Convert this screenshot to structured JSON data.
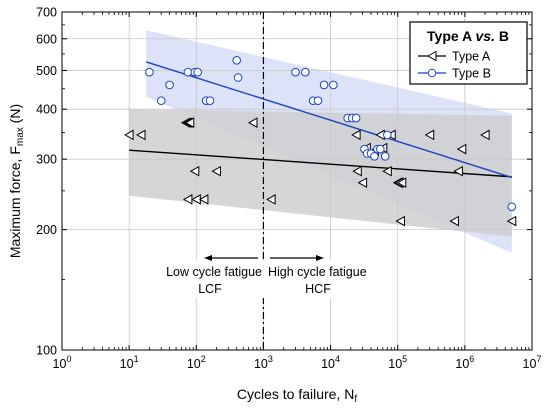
{
  "chart_data": {
    "type": "scatter",
    "xlabel_main": "Cycles to failure, N",
    "xlabel_sub": "f",
    "ylabel_main": "Maximum force, F",
    "ylabel_sub": "max",
    "ylabel_unit": " (N)",
    "x_scale": "log",
    "y_scale": "log",
    "xlim": [
      1,
      10000000
    ],
    "ylim": [
      100,
      700
    ],
    "x_ticks": [
      {
        "v": 1,
        "base": "10",
        "exp": "0"
      },
      {
        "v": 10,
        "base": "10",
        "exp": "1"
      },
      {
        "v": 100,
        "base": "10",
        "exp": "2"
      },
      {
        "v": 1000,
        "base": "10",
        "exp": "3"
      },
      {
        "v": 10000,
        "base": "10",
        "exp": "4"
      },
      {
        "v": 100000,
        "base": "10",
        "exp": "5"
      },
      {
        "v": 1000000,
        "base": "10",
        "exp": "6"
      },
      {
        "v": 10000000,
        "base": "10",
        "exp": "7"
      }
    ],
    "y_ticks": [
      {
        "v": 100,
        "label": "100"
      },
      {
        "v": 200,
        "label": "200"
      },
      {
        "v": 300,
        "label": "300"
      },
      {
        "v": 400,
        "label": "400"
      },
      {
        "v": 500,
        "label": "500"
      },
      {
        "v": 600,
        "label": "600"
      },
      {
        "v": 700,
        "label": "700"
      }
    ],
    "grid": true,
    "legend": {
      "placement": "top-right",
      "title_part1": "Type A ",
      "title_part2": "vs.",
      "title_part3": " B",
      "entries": [
        "Type A",
        "Type B"
      ]
    },
    "divider_x": 1000,
    "annotations": {
      "low_label": "Low cycle fatigue",
      "low_abbr": "LCF",
      "high_label": "High cycle fatigue",
      "high_abbr": "HCF"
    },
    "series": [
      {
        "name": "Type A",
        "marker": "left-triangle",
        "color": "#000000",
        "fit": [
          [
            10,
            316
          ],
          [
            5000000,
            271
          ]
        ],
        "band": {
          "upper": [
            [
              10,
              400
            ],
            [
              5000000,
              385
            ]
          ],
          "lower": [
            [
              10,
              243
            ],
            [
              5000000,
              192
            ]
          ],
          "color": "#cfcfcf"
        },
        "x": [
          10,
          15,
          70,
          75,
          80,
          75,
          95,
          100,
          130,
          200,
          700,
          1300,
          24000,
          25000,
          30000,
          34000,
          40000,
          45000,
          55000,
          60000,
          70000,
          80000,
          100000,
          105000,
          110000,
          115000,
          300000,
          700000,
          800000,
          900000,
          2000000,
          5000000
        ],
        "y": [
          345,
          345,
          370,
          370,
          370,
          238,
          280,
          238,
          238,
          280,
          370,
          238,
          345,
          280,
          262,
          320,
          310,
          315,
          345,
          320,
          280,
          345,
          262,
          262,
          210,
          262,
          345,
          210,
          280,
          318,
          345,
          210
        ]
      },
      {
        "name": "Type B",
        "marker": "circle",
        "color": "#1a44c2",
        "fit": [
          [
            18,
            525
          ],
          [
            5000000,
            270
          ]
        ],
        "band": {
          "upper": [
            [
              18,
              630
            ],
            [
              5000000,
              390
            ]
          ],
          "lower": [
            [
              18,
              430
            ],
            [
              5000000,
              175
            ]
          ],
          "color": "#d6ddf6"
        },
        "x": [
          20,
          30,
          40,
          75,
          95,
          105,
          140,
          160,
          400,
          420,
          3000,
          4200,
          5500,
          6500,
          8000,
          11000,
          18000,
          21000,
          24000,
          32000,
          35000,
          40000,
          45000,
          50000,
          55000,
          65000,
          70000,
          5000000
        ],
        "y": [
          495,
          420,
          460,
          495,
          495,
          495,
          420,
          420,
          530,
          480,
          495,
          495,
          420,
          420,
          460,
          460,
          380,
          380,
          380,
          318,
          310,
          310,
          305,
          318,
          318,
          305,
          345,
          228
        ]
      }
    ]
  }
}
